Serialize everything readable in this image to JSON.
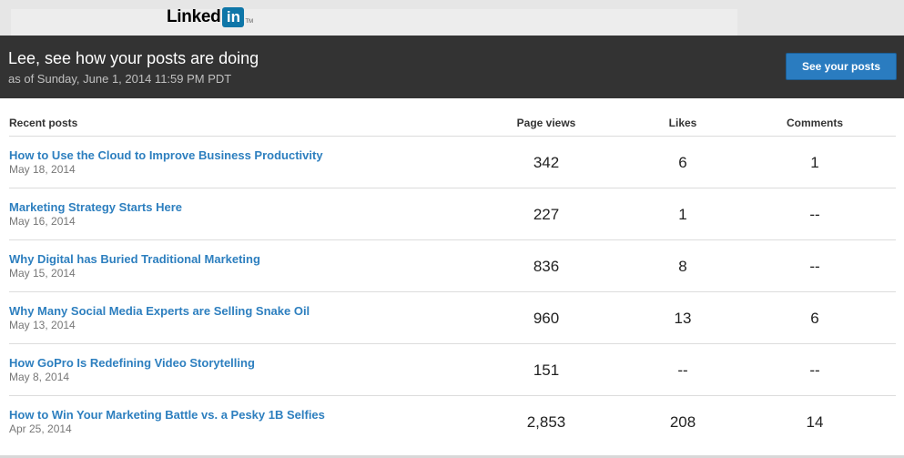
{
  "brand": {
    "name": "Linked",
    "box": "in",
    "tm": "TM"
  },
  "header": {
    "title": "Lee, see how your posts are doing",
    "subtitle": "as of Sunday, June 1, 2014 11:59 PM PDT",
    "button_label": "See your posts"
  },
  "table": {
    "columns": {
      "recent": "Recent posts",
      "views": "Page views",
      "likes": "Likes",
      "comments": "Comments"
    },
    "rows": [
      {
        "title": "How to Use the Cloud to Improve Business Productivity",
        "date": "May 18, 2014",
        "views": "342",
        "likes": "6",
        "comments": "1"
      },
      {
        "title": "Marketing Strategy Starts Here",
        "date": "May 16, 2014",
        "views": "227",
        "likes": "1",
        "comments": "--"
      },
      {
        "title": "Why Digital has Buried Traditional Marketing",
        "date": "May 15, 2014",
        "views": "836",
        "likes": "8",
        "comments": "--"
      },
      {
        "title": "Why Many Social Media Experts are Selling Snake Oil",
        "date": "May 13, 2014",
        "views": "960",
        "likes": "13",
        "comments": "6"
      },
      {
        "title": "How GoPro Is Redefining Video Storytelling",
        "date": "May 8, 2014",
        "views": "151",
        "likes": "--",
        "comments": "--"
      },
      {
        "title": "How to Win Your Marketing Battle vs. a Pesky 1B Selfies",
        "date": "Apr 25, 2014",
        "views": "2,853",
        "likes": "208",
        "comments": "14"
      }
    ]
  },
  "colors": {
    "header_bg": "#333333",
    "link": "#2d7fbf",
    "button": "#2a7cc0",
    "brand_blue": "#0e76a8"
  }
}
